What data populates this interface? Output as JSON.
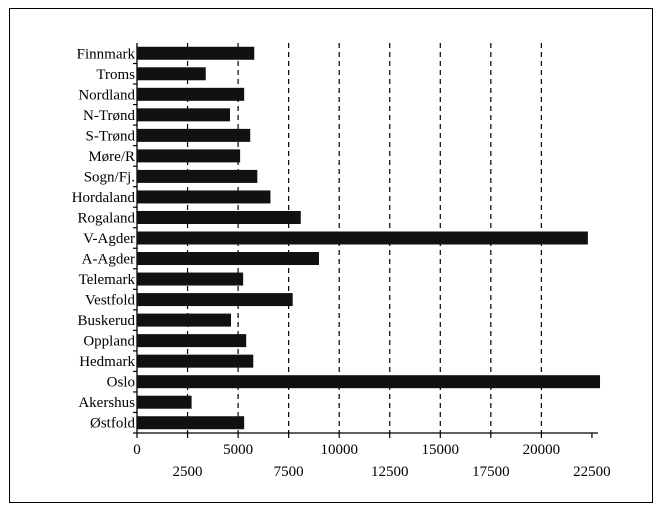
{
  "chart_data": {
    "type": "bar",
    "orientation": "horizontal",
    "categories": [
      "Finnmark",
      "Troms",
      "Nordland",
      "N-Trønd",
      "S-Trønd",
      "Møre/R",
      "Sogn/Fj.",
      "Hordaland",
      "Rogaland",
      "V-Agder",
      "A-Agder",
      "Telemark",
      "Vestfold",
      "Buskerud",
      "Oppland",
      "Hedmark",
      "Oslo",
      "Akershus",
      "Østfold"
    ],
    "values": [
      5800,
      3400,
      5300,
      4600,
      5600,
      5100,
      5950,
      6600,
      8100,
      22300,
      9000,
      5250,
      7700,
      4650,
      5400,
      5750,
      22900,
      2700,
      5300
    ],
    "xticks_top_row": [
      "0",
      "5000",
      "10000",
      "15000",
      "20000"
    ],
    "xticks_bottom_row": [
      "2500",
      "7500",
      "12500",
      "17500",
      "22500"
    ],
    "xlim": [
      0,
      22800
    ],
    "grid": "vertical dashed",
    "title": "",
    "xlabel": "",
    "ylabel": ""
  }
}
